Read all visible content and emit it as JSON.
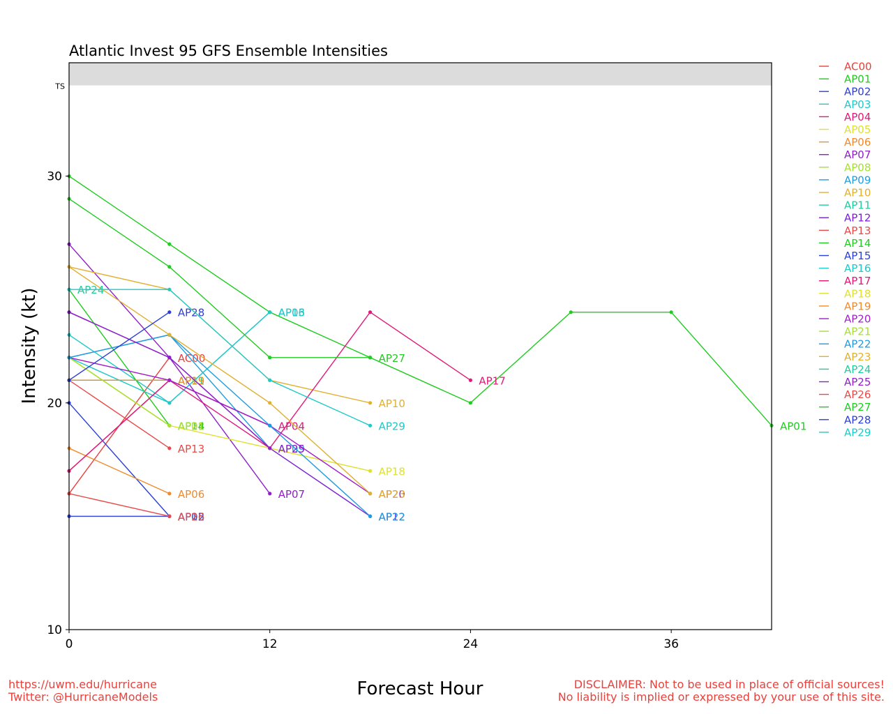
{
  "footer": {
    "url": "https://uwm.edu/hurricane",
    "twitter": "Twitter: @HurricaneModels",
    "disclaimer_1": "DISCLAIMER: Not to be used in place of official sources!",
    "disclaimer_2": "No liability is implied or expressed by your use of this site."
  },
  "chart_data": {
    "type": "line",
    "title": "Atlantic Invest 95 GFS Ensemble Intensities",
    "xlabel": "Forecast Hour",
    "ylabel": "Intensity (kt)",
    "xlim": [
      0,
      42
    ],
    "ylim": [
      10,
      35
    ],
    "xticks": [
      0,
      12,
      24,
      36
    ],
    "yticks": [
      10,
      20,
      30
    ],
    "band": {
      "label": "TS",
      "from": 34,
      "to": 35,
      "color": "#dcdcdc"
    },
    "grid": false,
    "legend_position": "right",
    "series": [
      {
        "name": "AC00",
        "color": "#e8413c",
        "x": [
          0,
          6
        ],
        "y": [
          16,
          22
        ]
      },
      {
        "name": "AP01",
        "color": "#1fcc1f",
        "x": [
          0,
          6,
          12,
          18,
          24,
          30,
          36,
          42
        ],
        "y": [
          30,
          27,
          24,
          22,
          20,
          24,
          24,
          19
        ]
      },
      {
        "name": "AP02",
        "color": "#2b3fd6",
        "x": [
          0,
          6
        ],
        "y": [
          20,
          15
        ]
      },
      {
        "name": "AP03",
        "color": "#1fc9c9",
        "x": [
          0,
          6,
          12
        ],
        "y": [
          23,
          20,
          24
        ]
      },
      {
        "name": "AP04",
        "color": "#e0197a",
        "x": [
          0,
          6,
          12
        ],
        "y": [
          17,
          21,
          19
        ]
      },
      {
        "name": "AP05",
        "color": "#e0e030",
        "x": [
          0,
          6
        ],
        "y": [
          21,
          21
        ]
      },
      {
        "name": "AP06",
        "color": "#f08a2c",
        "x": [
          0,
          6
        ],
        "y": [
          18,
          16
        ]
      },
      {
        "name": "AP07",
        "color": "#8f1fc9",
        "x": [
          0,
          6,
          12
        ],
        "y": [
          27,
          22,
          16
        ]
      },
      {
        "name": "AP08",
        "color": "#a6e032",
        "x": [
          0,
          6
        ],
        "y": [
          22,
          19
        ]
      },
      {
        "name": "AP09",
        "color": "#1f9ce0",
        "x": [
          0,
          6,
          12
        ],
        "y": [
          22,
          23,
          18
        ]
      },
      {
        "name": "AP10",
        "color": "#e0b030",
        "x": [
          0,
          6,
          12,
          18
        ],
        "y": [
          26,
          25,
          21,
          20
        ]
      },
      {
        "name": "AP11",
        "color": "#1fcc9f",
        "x": [
          0,
          6
        ],
        "y": [
          21,
          21
        ]
      },
      {
        "name": "AP12",
        "color": "#7a1fd6",
        "x": [
          0,
          6,
          12,
          18
        ],
        "y": [
          24,
          22,
          18,
          15
        ]
      },
      {
        "name": "AP13",
        "color": "#e84a4a",
        "x": [
          0,
          6
        ],
        "y": [
          21,
          18
        ]
      },
      {
        "name": "AP14",
        "color": "#1fcc1f",
        "x": [
          0,
          6
        ],
        "y": [
          25,
          19
        ]
      },
      {
        "name": "AP15",
        "color": "#2b3fd6",
        "x": [
          0,
          6
        ],
        "y": [
          15,
          15
        ]
      },
      {
        "name": "AP16",
        "color": "#1fc9c9",
        "x": [
          0,
          6,
          12
        ],
        "y": [
          22,
          20,
          24
        ]
      },
      {
        "name": "AP17",
        "color": "#e0197a",
        "x": [
          0,
          6,
          12,
          18,
          24
        ],
        "y": [
          17,
          21,
          18,
          24,
          21
        ]
      },
      {
        "name": "AP18",
        "color": "#e0e030",
        "x": [
          0,
          6,
          12,
          18
        ],
        "y": [
          22,
          19,
          18,
          17
        ]
      },
      {
        "name": "AP19",
        "color": "#f08a2c",
        "x": [
          0,
          6
        ],
        "y": [
          21,
          21
        ]
      },
      {
        "name": "AP20",
        "color": "#a01fc9",
        "x": [
          0,
          6,
          12,
          18
        ],
        "y": [
          22,
          21,
          19,
          16
        ]
      },
      {
        "name": "AP21",
        "color": "#a6e032",
        "x": [
          0,
          6
        ],
        "y": [
          22,
          19
        ]
      },
      {
        "name": "AP22",
        "color": "#1f9ce0",
        "x": [
          0,
          6,
          12,
          18
        ],
        "y": [
          22,
          23,
          19,
          15
        ]
      },
      {
        "name": "AP23",
        "color": "#e0b030",
        "x": [
          0,
          6,
          12,
          18
        ],
        "y": [
          26,
          23,
          20,
          16
        ]
      },
      {
        "name": "AP24",
        "color": "#1fcc9f",
        "x": [
          0
        ],
        "y": [
          25
        ]
      },
      {
        "name": "AP25",
        "color": "#8f1fc9",
        "x": [
          0,
          6,
          12
        ],
        "y": [
          24,
          22,
          18
        ]
      },
      {
        "name": "AP26",
        "color": "#e84a4a",
        "x": [
          0,
          6
        ],
        "y": [
          16,
          15
        ]
      },
      {
        "name": "AP27",
        "color": "#1fcc1f",
        "x": [
          0,
          6,
          12,
          18
        ],
        "y": [
          29,
          26,
          22,
          22
        ]
      },
      {
        "name": "AP28",
        "color": "#2b3fd6",
        "x": [
          0,
          6
        ],
        "y": [
          21,
          24
        ]
      },
      {
        "name": "AP29",
        "color": "#1fc9c9",
        "x": [
          0,
          6,
          12,
          18
        ],
        "y": [
          25,
          25,
          21,
          19
        ]
      }
    ]
  }
}
